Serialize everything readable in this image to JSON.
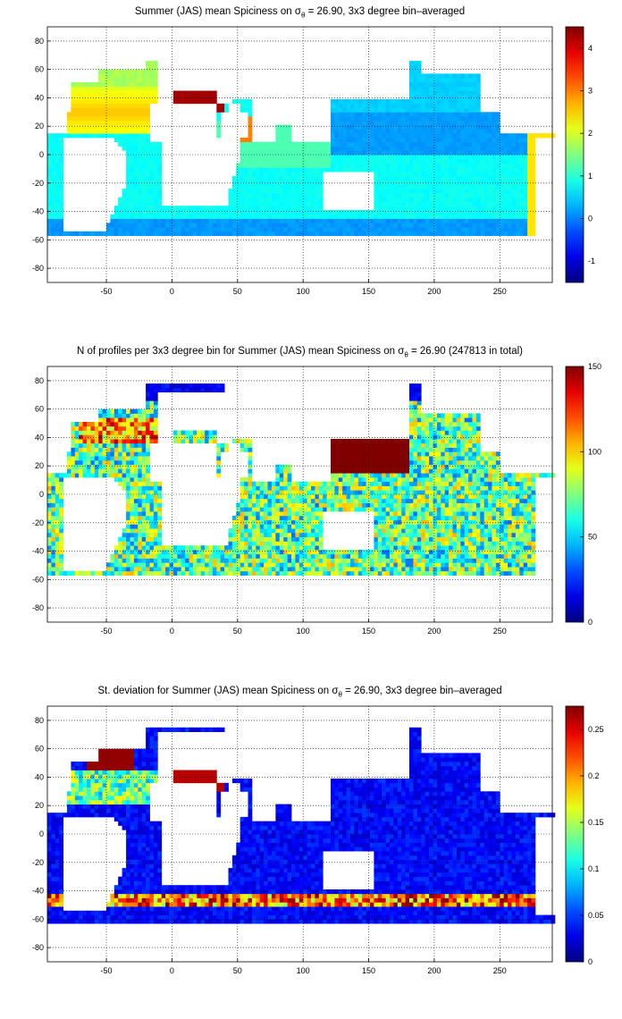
{
  "chart_data": [
    {
      "type": "heatmap",
      "title_pre": "Summer (JAS) mean Spiciness on ",
      "title_sym": "σ",
      "title_sub": "θ",
      "title_post": " = 26.90, 3x3 degree bin–averaged",
      "xlim": [
        -95,
        290
      ],
      "ylim": [
        -90,
        90
      ],
      "xticks": [
        "-50",
        "0",
        "50",
        "100",
        "150",
        "200",
        "250"
      ],
      "yticks": [
        "80",
        "60",
        "40",
        "20",
        "0",
        "-20",
        "-40",
        "-60",
        "-80"
      ],
      "colorbar": {
        "min": -1.5,
        "max": 4.5,
        "ticks": [
          "4",
          "3",
          "2",
          "1",
          "0",
          "-1"
        ]
      },
      "grid": true,
      "colormap": "jet",
      "bin_size_degrees": 3
    },
    {
      "type": "heatmap",
      "title_pre": "N of profiles per 3x3 degree bin for Summer (JAS) mean Spiciness on ",
      "title_sym": "σ",
      "title_sub": "θ",
      "title_post": " = 26.90 (247813 in total)",
      "xlim": [
        -95,
        290
      ],
      "ylim": [
        -90,
        90
      ],
      "xticks": [
        "-50",
        "0",
        "50",
        "100",
        "150",
        "200",
        "250"
      ],
      "yticks": [
        "80",
        "60",
        "40",
        "20",
        "0",
        "-20",
        "-40",
        "-60",
        "-80"
      ],
      "colorbar": {
        "min": 0,
        "max": 150,
        "ticks": [
          "150",
          "100",
          "50",
          "0"
        ]
      },
      "grid": true,
      "colormap": "jet",
      "total_profiles": 247813
    },
    {
      "type": "heatmap",
      "title_pre": "St. deviation for Summer (JAS) mean Spiciness on ",
      "title_sym": "σ",
      "title_sub": "θ",
      "title_post": " = 26.90, 3x3 degree bin–averaged",
      "xlim": [
        -95,
        290
      ],
      "ylim": [
        -90,
        90
      ],
      "xticks": [
        "-50",
        "0",
        "50",
        "100",
        "150",
        "200",
        "250"
      ],
      "yticks": [
        "80",
        "60",
        "40",
        "20",
        "0",
        "-20",
        "-40",
        "-60",
        "-80"
      ],
      "colorbar": {
        "min": 0,
        "max": 0.275,
        "ticks": [
          "0.25",
          "0.2",
          "0.15",
          "0.1",
          "0.05",
          "0"
        ]
      },
      "grid": true,
      "colormap": "jet"
    }
  ]
}
